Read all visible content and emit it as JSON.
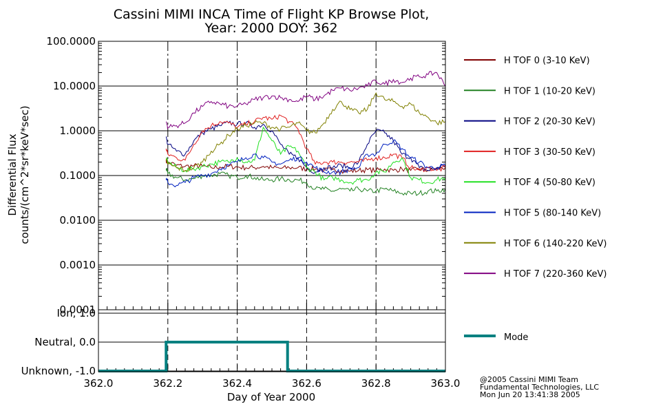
{
  "colors": {
    "background": "#ffffff",
    "axis": "#000000",
    "tof0": "#800000",
    "tof1": "#208020",
    "tof2": "#000080",
    "tof3": "#e02020",
    "tof4": "#20e020",
    "tof5": "#0020c0",
    "tof6": "#808000",
    "tof7": "#800080",
    "mode": "#008080"
  },
  "chart_data": [
    {
      "type": "line",
      "title": "Cassini MIMI INCA Time of Flight KP Browse Plot,",
      "subtitle": "Year: 2000 DOY: 362",
      "xlabel": "",
      "ylabel": "Differential Flux",
      "ylabel2": "counts/(cm^2*sr*keV*sec)",
      "yscale": "log",
      "ylim": [
        0.0001,
        100
      ],
      "xlim": [
        362.0,
        363.0
      ],
      "yticks": [
        100,
        10,
        1,
        0.1,
        0.01,
        0.001,
        0.0001
      ],
      "ytick_labels": [
        "100.0000",
        "10.0000",
        "1.0000",
        "0.1000",
        "0.0100",
        "0.0010",
        "0.0001"
      ],
      "vlines": [
        362.2,
        362.4,
        362.6,
        362.8
      ],
      "grid": true,
      "legend_position": "right",
      "x": [
        362.195,
        362.2,
        362.225,
        362.25,
        362.275,
        362.3,
        362.325,
        362.35,
        362.375,
        362.4,
        362.425,
        362.45,
        362.475,
        362.5,
        362.525,
        362.55,
        362.575,
        362.6,
        362.625,
        362.65,
        362.675,
        362.7,
        362.725,
        362.75,
        362.775,
        362.8,
        362.825,
        362.85,
        362.875,
        362.9,
        362.925,
        362.95,
        362.975,
        363.0
      ],
      "series": [
        {
          "name": "H TOF 0 (3-10 KeV)",
          "color_key": "tof0",
          "values": [
            0.22,
            0.2,
            0.17,
            0.16,
            0.165,
            0.16,
            0.15,
            0.155,
            0.16,
            0.155,
            0.15,
            0.15,
            0.16,
            0.15,
            0.145,
            0.15,
            0.15,
            0.14,
            0.14,
            0.13,
            0.135,
            0.13,
            0.125,
            0.13,
            0.135,
            0.13,
            0.14,
            0.13,
            0.14,
            0.13,
            0.14,
            0.13,
            0.14,
            0.15
          ]
        },
        {
          "name": "H TOF 1 (10-20 KeV)",
          "color_key": "tof1",
          "values": [
            0.14,
            0.11,
            0.09,
            0.08,
            0.085,
            0.1,
            0.1,
            0.11,
            0.1,
            0.09,
            0.1,
            0.09,
            0.08,
            0.08,
            0.085,
            0.08,
            0.08,
            0.07,
            0.05,
            0.05,
            0.045,
            0.05,
            0.045,
            0.05,
            0.045,
            0.045,
            0.05,
            0.045,
            0.04,
            0.04,
            0.04,
            0.045,
            0.045,
            0.05
          ]
        },
        {
          "name": "H TOF 2 (20-30 KeV)",
          "color_key": "tof2",
          "values": [
            0.7,
            0.5,
            0.35,
            0.3,
            0.6,
            0.9,
            1.1,
            1.3,
            1.5,
            1.4,
            1.5,
            1.2,
            1.4,
            1.0,
            0.5,
            0.3,
            0.25,
            0.15,
            0.12,
            0.15,
            0.15,
            0.17,
            0.15,
            0.2,
            0.5,
            1.0,
            0.9,
            0.6,
            0.3,
            0.25,
            0.15,
            0.13,
            0.15,
            0.17
          ]
        },
        {
          "name": "H TOF 3 (30-50 KeV)",
          "color_key": "tof3",
          "values": [
            0.4,
            0.3,
            0.25,
            0.22,
            0.5,
            1.0,
            1.3,
            1.6,
            1.5,
            1.2,
            1.4,
            1.6,
            2.0,
            1.8,
            2.2,
            1.6,
            1.1,
            0.4,
            0.18,
            0.2,
            0.2,
            0.2,
            0.2,
            0.2,
            0.22,
            0.25,
            0.25,
            0.3,
            0.25,
            0.15,
            0.13,
            0.15,
            0.13,
            0.15
          ]
        },
        {
          "name": "H TOF 4 (50-80 KeV)",
          "color_key": "tof4",
          "values": [
            0.25,
            0.2,
            0.15,
            0.13,
            0.14,
            0.16,
            0.18,
            0.2,
            0.2,
            0.25,
            0.2,
            0.22,
            1.2,
            0.6,
            0.3,
            0.45,
            0.35,
            0.15,
            0.12,
            0.08,
            0.09,
            0.08,
            0.07,
            0.08,
            0.08,
            0.12,
            0.12,
            0.2,
            0.25,
            0.09,
            0.08,
            0.07,
            0.08,
            0.09
          ]
        },
        {
          "name": "H TOF 5 (80-140 KeV)",
          "color_key": "tof5",
          "values": [
            0.08,
            0.07,
            0.06,
            0.07,
            0.09,
            0.1,
            0.11,
            0.14,
            0.17,
            0.2,
            0.25,
            0.3,
            0.25,
            0.2,
            0.18,
            0.22,
            0.25,
            0.2,
            0.15,
            0.12,
            0.12,
            0.12,
            0.14,
            0.15,
            0.3,
            0.3,
            0.5,
            0.6,
            0.4,
            0.25,
            0.2,
            0.15,
            0.15,
            0.17
          ]
        },
        {
          "name": "H TOF 6 (140-220 KeV)",
          "color_key": "tof6",
          "values": [
            0.22,
            0.18,
            0.15,
            0.13,
            0.15,
            0.2,
            0.35,
            0.5,
            0.8,
            1.1,
            1.3,
            1.5,
            1.5,
            1.2,
            1.1,
            1.2,
            1.5,
            1.0,
            0.9,
            1.5,
            3.0,
            4.5,
            3.0,
            2.5,
            3.0,
            7.0,
            5.0,
            4.5,
            3.5,
            4.0,
            2.5,
            2.0,
            1.5,
            1.6
          ]
        },
        {
          "name": "H TOF 7 (220-360 KeV)",
          "color_key": "tof7",
          "values": [
            1.6,
            1.2,
            1.3,
            1.5,
            2.5,
            3.5,
            4.5,
            4.0,
            3.5,
            3.5,
            4.0,
            5.0,
            5.5,
            6.0,
            5.5,
            5.0,
            4.5,
            6.0,
            5.0,
            6.0,
            8.0,
            9.0,
            8.0,
            9.0,
            10.0,
            13.0,
            11.0,
            14.0,
            12.0,
            15.0,
            16.0,
            18.0,
            20.0,
            10.0
          ]
        }
      ]
    },
    {
      "type": "line",
      "xlabel": "Day of Year 2000",
      "xlim": [
        362.0,
        363.0
      ],
      "xticks": [
        362.0,
        362.2,
        362.4,
        362.6,
        362.8,
        363.0
      ],
      "xtick_labels": [
        "362.0",
        "362.2",
        "362.4",
        "362.6",
        "362.8",
        "363.0"
      ],
      "ylim": [
        -1.0,
        1.0
      ],
      "yticks": [
        1.0,
        0.0,
        -1.0
      ],
      "ytick_labels": [
        "Ion, 1.0",
        "Neutral, 0.0",
        "Unknown, -1.0"
      ],
      "vlines": [
        362.2,
        362.4,
        362.6,
        362.8
      ],
      "series": [
        {
          "name": "Mode",
          "color_key": "mode",
          "x": [
            362.0,
            362.195,
            362.195,
            362.545,
            362.545,
            363.0
          ],
          "values": [
            -1.0,
            -1.0,
            0.0,
            0.0,
            -1.0,
            -1.0
          ]
        }
      ]
    }
  ],
  "credits": {
    "line1": "@2005 Cassini MIMI Team",
    "line2": "Fundamental Technologies, LLC",
    "line3": "Mon Jun 20 13:41:38 2005"
  }
}
